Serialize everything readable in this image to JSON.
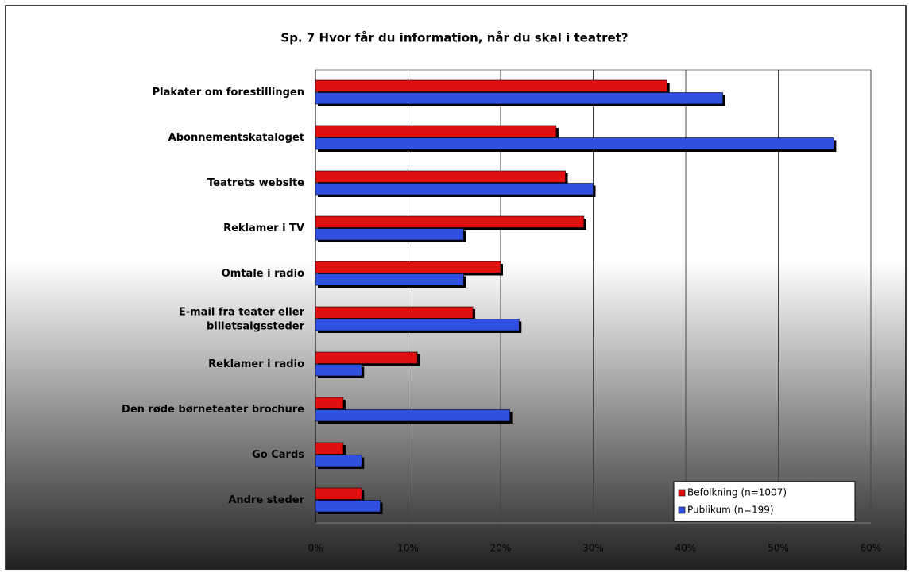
{
  "chart_data": {
    "type": "bar",
    "orientation": "horizontal",
    "title": "Sp. 7 Hvor får du information, når du skal i teatret?",
    "categories": [
      "Plakater om forestillingen",
      "Abonnementskataloget",
      "Teatrets website",
      "Reklamer i TV",
      "Omtale i radio",
      "E-mail fra teater eller billetsalgssteder",
      "Reklamer i radio",
      "Den røde børneteater brochure",
      "Go Cards",
      "Andre steder"
    ],
    "series": [
      {
        "name": "Befolkning (n=1007)",
        "color": "#e01010",
        "values": [
          38,
          26,
          27,
          29,
          20,
          17,
          11,
          3,
          3,
          5
        ]
      },
      {
        "name": "Publikum (n=199)",
        "color": "#3050e0",
        "values": [
          44,
          56,
          30,
          16,
          16,
          22,
          5,
          21,
          5,
          7
        ]
      }
    ],
    "xlim": [
      0,
      60
    ],
    "xticks": [
      {
        "value": 0,
        "label": "0%"
      },
      {
        "value": 10,
        "label": "10%"
      },
      {
        "value": 20,
        "label": "20%"
      },
      {
        "value": 30,
        "label": "30%"
      },
      {
        "value": 40,
        "label": "40%"
      },
      {
        "value": 50,
        "label": "50%"
      },
      {
        "value": 60,
        "label": "60%"
      }
    ],
    "grid": true,
    "legend": "lower right"
  }
}
